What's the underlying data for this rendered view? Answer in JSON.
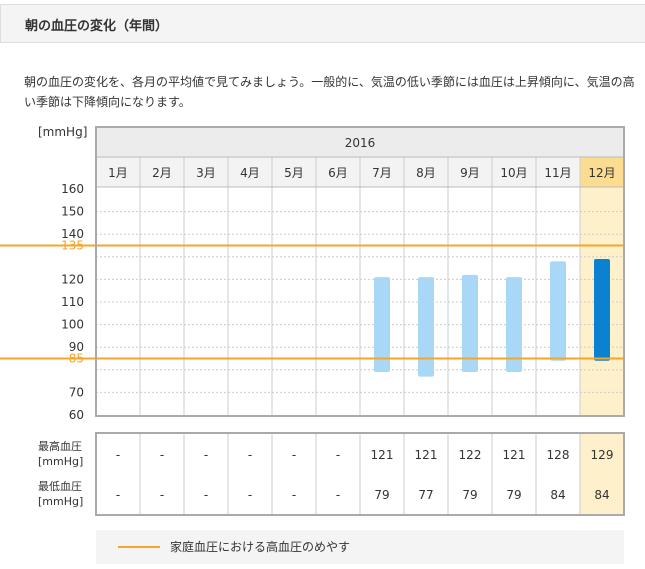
{
  "section": {
    "title": "朝の血圧の変化（年間）",
    "description": "朝の血圧の変化を、各月の平均値で見てみましょう。一般的に、気温の低い季節には血圧は上昇傾向に、気温の高い季節は下降傾向になります。"
  },
  "colors": {
    "accent": "#f4a52a",
    "bar_light": "#a8d8f5",
    "bar_current": "#0a82d0",
    "highlight_column": "#fdf0cb",
    "highlight_header": "#fbdc91",
    "header_bg": "#ececec",
    "frame": "#aaaaaa"
  },
  "chart_data": {
    "type": "range-bar",
    "unit_label": "[mmHg]",
    "year": "2016",
    "categories": [
      "1月",
      "2月",
      "3月",
      "4月",
      "5月",
      "6月",
      "7月",
      "8月",
      "9月",
      "10月",
      "11月",
      "12月"
    ],
    "highlighted_category_index": 11,
    "y_ticks": [
      60,
      70,
      80,
      90,
      100,
      110,
      120,
      130,
      140,
      150,
      160
    ],
    "ylim": [
      60,
      160
    ],
    "y_tick_labels": [
      {
        "value": 160,
        "label": "160"
      },
      {
        "value": 150,
        "label": "150"
      },
      {
        "value": 140,
        "label": "140"
      },
      {
        "value": 135,
        "label": "135",
        "accent": true
      },
      {
        "value": 120,
        "label": "120"
      },
      {
        "value": 110,
        "label": "110"
      },
      {
        "value": 100,
        "label": "100"
      },
      {
        "value": 90,
        "label": "90"
      },
      {
        "value": 85,
        "label": "85",
        "accent": true
      },
      {
        "value": 70,
        "label": "70"
      },
      {
        "value": 60,
        "label": "60"
      }
    ],
    "reference_lines": [
      135,
      85
    ],
    "high": [
      null,
      null,
      null,
      null,
      null,
      null,
      121,
      121,
      122,
      121,
      128,
      129
    ],
    "low": [
      null,
      null,
      null,
      null,
      null,
      null,
      79,
      77,
      79,
      79,
      84,
      84
    ],
    "table": {
      "rows": [
        {
          "label1": "最高血圧",
          "label2": "[mmHg]",
          "cells": [
            "-",
            "-",
            "-",
            "-",
            "-",
            "-",
            "121",
            "121",
            "122",
            "121",
            "128",
            "129"
          ]
        },
        {
          "label1": "最低血圧",
          "label2": "[mmHg]",
          "cells": [
            "-",
            "-",
            "-",
            "-",
            "-",
            "-",
            "79",
            "77",
            "79",
            "79",
            "84",
            "84"
          ]
        }
      ]
    },
    "legend": {
      "text": "家庭血圧における高血圧のめやす"
    }
  }
}
